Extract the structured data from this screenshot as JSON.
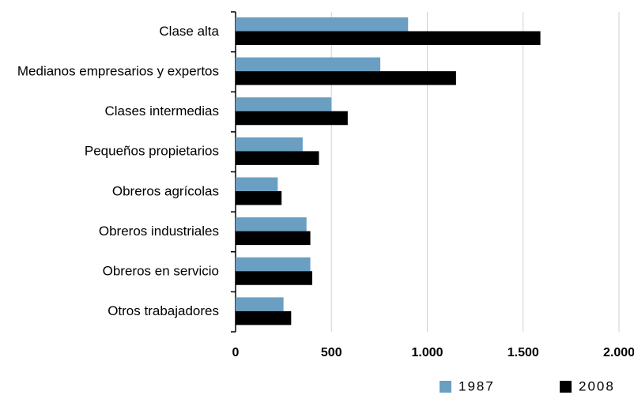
{
  "chart_data": {
    "type": "hbar",
    "categories": [
      "Clase alta",
      "Medianos empresarios y expertos",
      "Clases intermedias",
      "Pequeños propietarios",
      "Obreros agrícolas",
      "Obreros industriales",
      "Obreros en servicio",
      "Otros trabajadores"
    ],
    "series": [
      {
        "name": "1987",
        "color": "#6b9fc1",
        "values": [
          900,
          755,
          500,
          350,
          220,
          370,
          390,
          250
        ]
      },
      {
        "name": "2008",
        "color": "#000000",
        "values": [
          1590,
          1150,
          585,
          435,
          240,
          390,
          400,
          290
        ]
      }
    ],
    "xlim": [
      0,
      2000
    ],
    "xticks": [
      0,
      500,
      {
        "value": 1000,
        "label": "1.000"
      },
      {
        "value": 1500,
        "label": "1.500"
      },
      {
        "value": 2000,
        "label": "2.000"
      }
    ],
    "grid": true
  }
}
